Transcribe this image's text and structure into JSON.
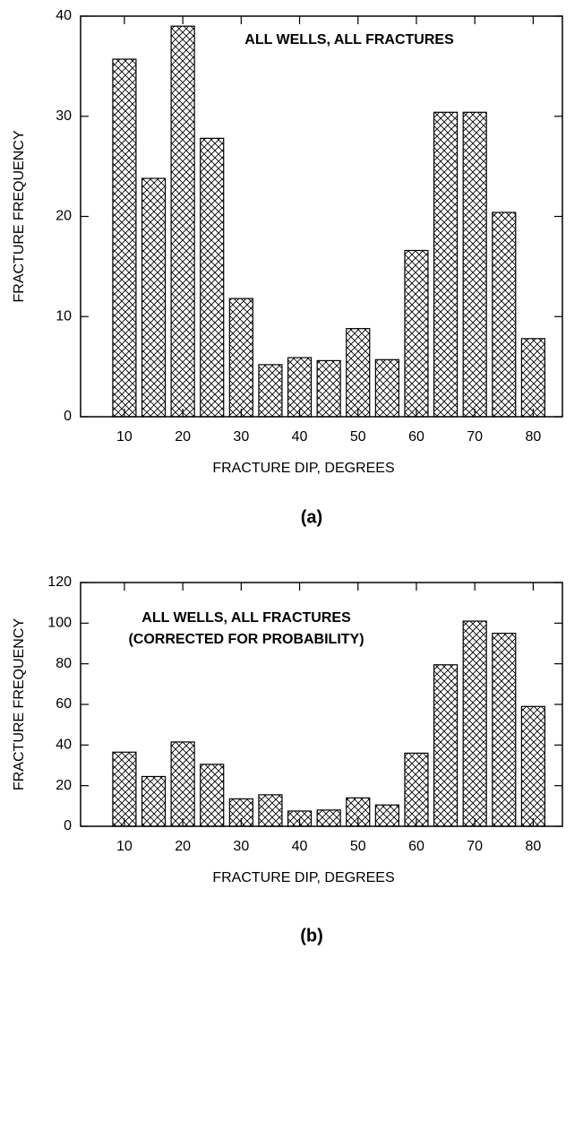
{
  "chart_data": [
    {
      "type": "bar",
      "x": [
        10,
        15,
        20,
        25,
        30,
        35,
        40,
        45,
        50,
        55,
        60,
        65,
        70,
        75,
        80
      ],
      "values": [
        35.7,
        23.8,
        39,
        27.8,
        11.8,
        5.2,
        5.9,
        5.6,
        8.8,
        5.7,
        16.6,
        30.4,
        30.4,
        20.4,
        7.8
      ],
      "color": "#000000",
      "xlim": [
        2.5,
        85
      ],
      "xticks": [
        10,
        20,
        30,
        40,
        50,
        60,
        70,
        80
      ],
      "ylim": [
        0,
        40
      ],
      "yticks": [
        0,
        10,
        20,
        30,
        40
      ],
      "x_label": "FRACTURE DIP, DEGREES",
      "y_label": "FRACTURE FREQUENCY",
      "annotation": [
        "ALL WELLS, ALL FRACTURES"
      ],
      "caption": "(a)"
    },
    {
      "type": "bar",
      "x": [
        10,
        15,
        20,
        25,
        30,
        35,
        40,
        45,
        50,
        55,
        60,
        65,
        70,
        75,
        80
      ],
      "values": [
        36.5,
        24.5,
        41.5,
        30.5,
        13.5,
        15.5,
        7.5,
        8,
        14,
        10.5,
        36,
        79.5,
        101,
        95,
        59
      ],
      "color": "#000000",
      "xlim": [
        2.5,
        85
      ],
      "xticks": [
        10,
        20,
        30,
        40,
        50,
        60,
        70,
        80
      ],
      "ylim": [
        0,
        120
      ],
      "yticks": [
        0,
        20,
        40,
        60,
        80,
        100,
        120
      ],
      "x_label": "FRACTURE DIP, DEGREES",
      "y_label": "FRACTURE FREQUENCY",
      "annotation": [
        "ALL WELLS, ALL FRACTURES",
        "(CORRECTED FOR PROBABILITY)"
      ],
      "caption": "(b)"
    }
  ]
}
